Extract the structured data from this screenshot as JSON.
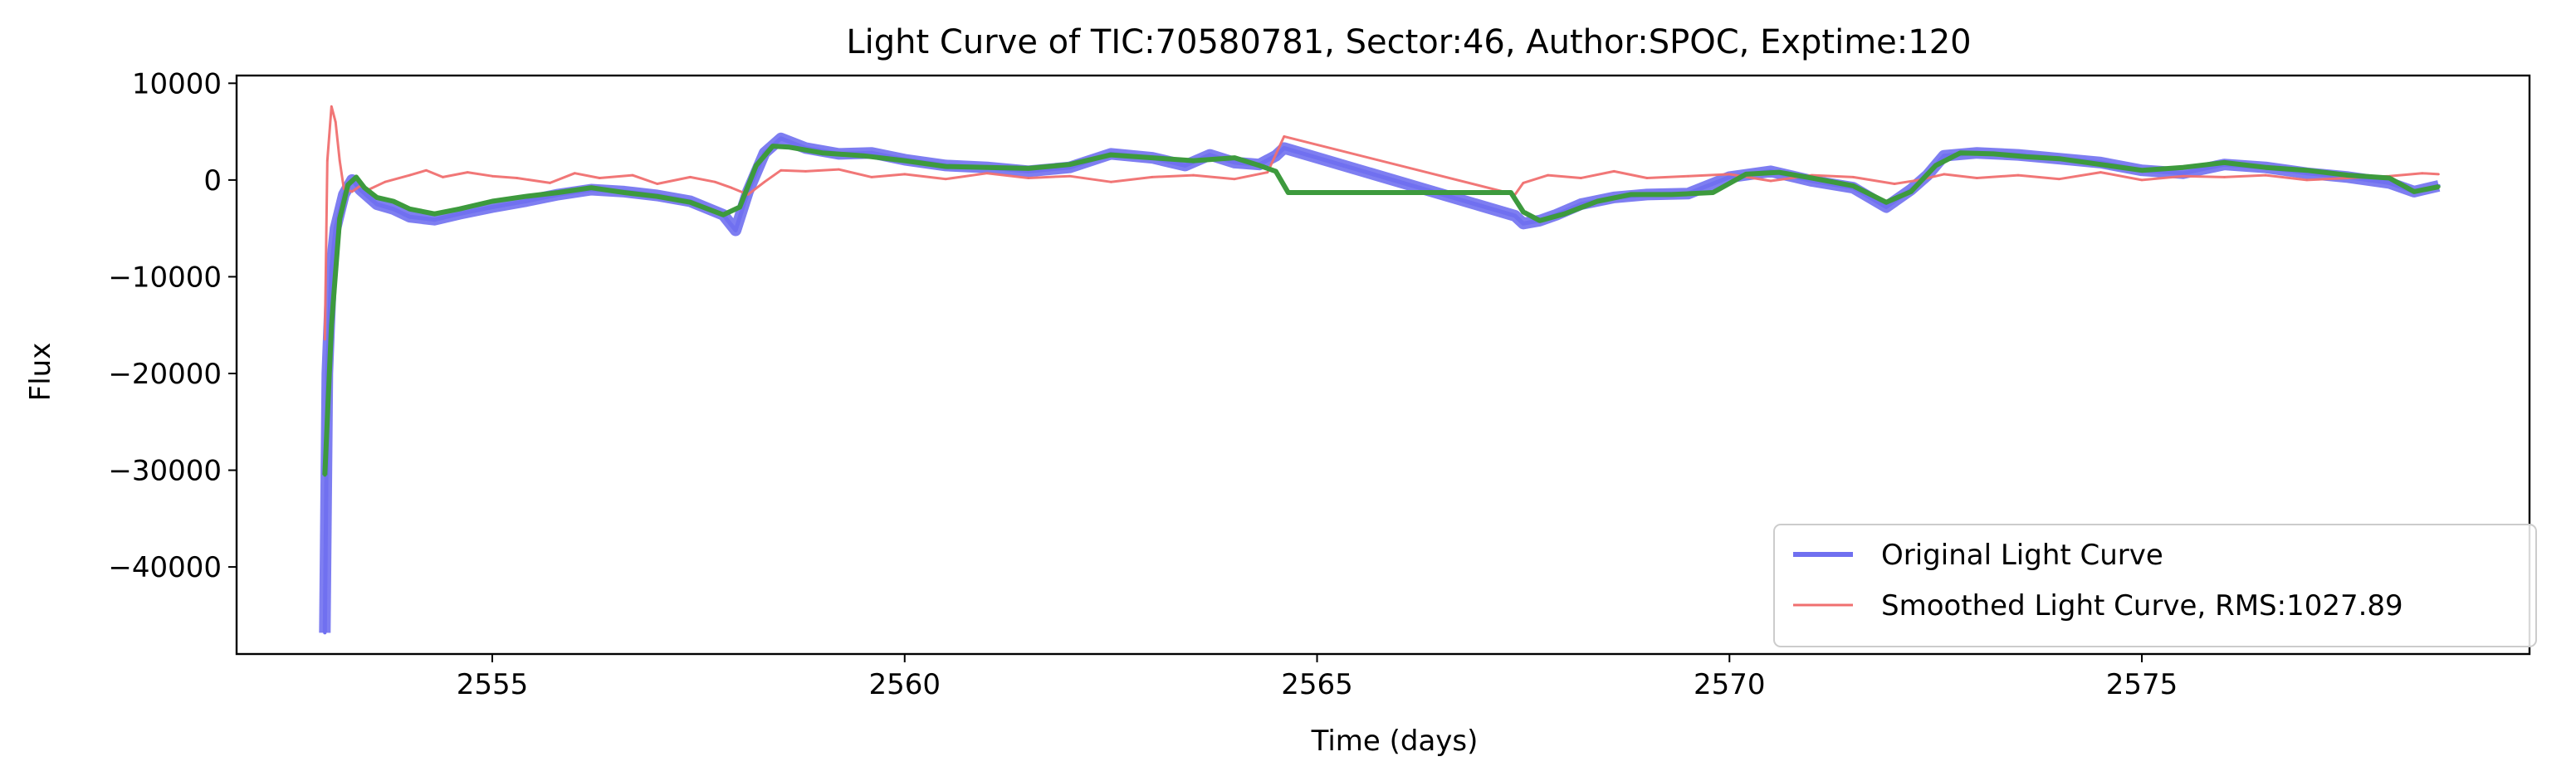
{
  "chart_data": {
    "type": "line",
    "title": "Light Curve of TIC:70580781, Sector:46, Author:SPOC, Exptime:120",
    "xlabel": "Time (days)",
    "ylabel": "Flux",
    "xlim": [
      2551.9,
      2579.7
    ],
    "ylim": [
      -49000,
      10800
    ],
    "xticks": [
      2555,
      2560,
      2565,
      2570,
      2575
    ],
    "yticks": [
      10000,
      0,
      -10000,
      -20000,
      -30000,
      -40000
    ],
    "ytick_labels": [
      "10000",
      "0",
      "−10000",
      "−20000",
      "−30000",
      "−40000"
    ],
    "legend": {
      "placement": "lower-right",
      "entries": [
        "Original Light Curve",
        "Smoothed Light Curve, RMS:1027.89"
      ]
    },
    "series": [
      {
        "name": "Original Light Curve",
        "color": "#7070f0",
        "band": true,
        "x": [
          2552.97,
          2553.0,
          2553.05,
          2553.1,
          2553.2,
          2553.3,
          2553.4,
          2553.6,
          2553.8,
          2554.0,
          2554.3,
          2554.6,
          2555.0,
          2555.4,
          2555.8,
          2556.2,
          2556.6,
          2557.0,
          2557.4,
          2557.8,
          2557.95,
          2558.1,
          2558.3,
          2558.5,
          2558.8,
          2559.2,
          2559.6,
          2560.0,
          2560.5,
          2561.0,
          2561.5,
          2562.0,
          2562.5,
          2563.0,
          2563.4,
          2563.7,
          2564.0,
          2564.3,
          2564.5,
          2564.6,
          2567.4,
          2567.5,
          2567.7,
          2567.9,
          2568.2,
          2568.6,
          2569.0,
          2569.5,
          2570.0,
          2570.5,
          2571.0,
          2571.5,
          2571.9,
          2572.2,
          2572.4,
          2572.6,
          2573.0,
          2573.5,
          2574.0,
          2574.5,
          2575.0,
          2575.5,
          2576.0,
          2576.5,
          2577.0,
          2577.5,
          2578.0,
          2578.3,
          2578.6
        ],
        "y": [
          -46800,
          -20000,
          -9000,
          -5000,
          -1500,
          0,
          -1000,
          -2500,
          -3000,
          -3800,
          -4100,
          -3500,
          -2800,
          -2200,
          -1500,
          -1000,
          -1200,
          -1600,
          -2200,
          -3600,
          -5200,
          -1200,
          2800,
          4300,
          3300,
          2700,
          2800,
          2100,
          1500,
          1300,
          900,
          1300,
          2700,
          2300,
          1500,
          2600,
          1800,
          1600,
          2500,
          3300,
          -3700,
          -4500,
          -4200,
          -3600,
          -2500,
          -1800,
          -1500,
          -1400,
          300,
          900,
          -100,
          -800,
          -2800,
          -1000,
          500,
          2500,
          2800,
          2600,
          2200,
          1800,
          1000,
          700,
          1600,
          1300,
          700,
          300,
          -300,
          -1200,
          -600
        ]
      },
      {
        "name": "Smoothed Light Curve, RMS:1027.89",
        "color": "#f07070",
        "x": [
          2552.97,
          2553.0,
          2553.05,
          2553.1,
          2553.15,
          2553.2,
          2553.3,
          2553.4,
          2553.5,
          2553.7,
          2554.0,
          2554.2,
          2554.4,
          2554.7,
          2555.0,
          2555.3,
          2555.7,
          2556.0,
          2556.3,
          2556.7,
          2557.0,
          2557.4,
          2557.7,
          2557.9,
          2558.1,
          2558.3,
          2558.5,
          2558.8,
          2559.2,
          2559.6,
          2560.0,
          2560.5,
          2561.0,
          2561.5,
          2562.0,
          2562.5,
          2563.0,
          2563.5,
          2564.0,
          2564.4,
          2564.6,
          2567.4,
          2567.5,
          2567.8,
          2568.2,
          2568.6,
          2569.0,
          2569.5,
          2570.0,
          2570.5,
          2571.0,
          2571.5,
          2572.0,
          2572.3,
          2572.6,
          2573.0,
          2573.5,
          2574.0,
          2574.5,
          2575.0,
          2575.5,
          2576.0,
          2576.5,
          2577.0,
          2577.5,
          2578.0,
          2578.4,
          2578.6
        ],
        "y": [
          -16500,
          2000,
          7600,
          6000,
          2000,
          -900,
          -1200,
          -600,
          -1000,
          -200,
          500,
          1000,
          300,
          800,
          400,
          200,
          -300,
          700,
          200,
          500,
          -400,
          300,
          -200,
          -800,
          -1500,
          -200,
          1000,
          900,
          1100,
          300,
          600,
          100,
          700,
          200,
          400,
          -200,
          300,
          500,
          100,
          800,
          4500,
          -1500,
          -300,
          500,
          200,
          900,
          200,
          400,
          600,
          -100,
          500,
          300,
          -400,
          0,
          600,
          200,
          500,
          100,
          800,
          0,
          400,
          300,
          500,
          0,
          200,
          400,
          700,
          600
        ]
      },
      {
        "name": "",
        "color": "#3d9a3d",
        "x": [
          2552.97,
          2553.05,
          2553.15,
          2553.25,
          2553.35,
          2553.45,
          2553.6,
          2553.8,
          2554.0,
          2554.3,
          2554.6,
          2555.0,
          2555.4,
          2555.8,
          2556.2,
          2556.6,
          2557.0,
          2557.4,
          2557.8,
          2558.0,
          2558.2,
          2558.4,
          2558.6,
          2559.0,
          2559.5,
          2560.0,
          2560.5,
          2561.0,
          2561.5,
          2562.0,
          2562.5,
          2563.0,
          2563.5,
          2564.0,
          2564.3,
          2564.5,
          2564.65,
          2567.35,
          2567.5,
          2567.7,
          2568.0,
          2568.4,
          2568.8,
          2569.3,
          2569.8,
          2570.2,
          2570.6,
          2571.0,
          2571.5,
          2571.9,
          2572.2,
          2572.5,
          2572.8,
          2573.2,
          2573.6,
          2574.0,
          2574.5,
          2575.0,
          2575.5,
          2576.0,
          2576.5,
          2577.0,
          2577.5,
          2578.0,
          2578.3,
          2578.6
        ],
        "y": [
          -30500,
          -15000,
          -4000,
          -500,
          300,
          -800,
          -1800,
          -2200,
          -3000,
          -3500,
          -3000,
          -2200,
          -1700,
          -1300,
          -800,
          -1300,
          -1700,
          -2300,
          -3600,
          -2800,
          1500,
          3500,
          3400,
          2800,
          2500,
          2000,
          1400,
          1300,
          1200,
          1600,
          2600,
          2300,
          2000,
          2300,
          1500,
          900,
          -1300,
          -1300,
          -3300,
          -4200,
          -3500,
          -2200,
          -1500,
          -1500,
          -1300,
          600,
          800,
          200,
          -600,
          -2300,
          -1200,
          1500,
          2800,
          2700,
          2400,
          2200,
          1600,
          1000,
          1300,
          1800,
          1300,
          1000,
          500,
          200,
          -1200,
          -700
        ]
      }
    ]
  }
}
